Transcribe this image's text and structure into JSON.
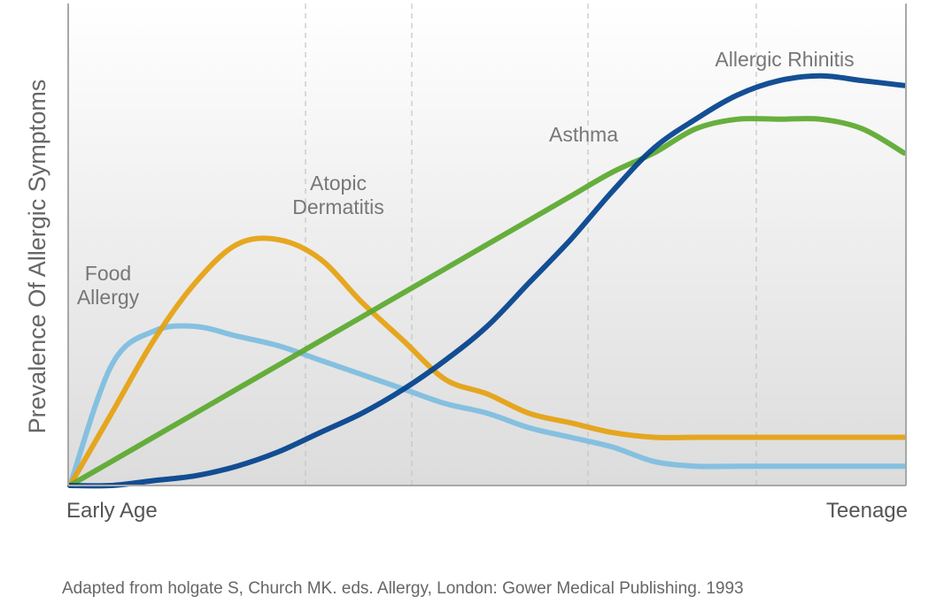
{
  "chart_data": {
    "type": "line",
    "title": "",
    "ylabel": "Prevalence Of Allergic Symptoms",
    "xlabel": "",
    "x_tick_labels": {
      "start": "Early Age",
      "end": "Teenage"
    },
    "x_range": [
      0,
      100
    ],
    "ylim": [
      0,
      100
    ],
    "grid": "dashed vertical lines",
    "x": [
      0,
      5,
      10,
      15,
      20,
      25,
      30,
      35,
      40,
      45,
      50,
      55,
      60,
      65,
      70,
      75,
      80,
      85,
      90,
      95,
      100
    ],
    "series": [
      {
        "name": "Food Allergy",
        "color": "#7dbde0",
        "values": [
          0,
          25,
          32,
          33,
          31,
          29,
          26,
          23,
          20,
          17,
          15,
          12,
          10,
          8,
          5,
          4,
          4,
          4,
          4,
          4,
          4
        ]
      },
      {
        "name": "Atopic Dermatitis",
        "color": "#e5a10e",
        "values": [
          0,
          15,
          30,
          42,
          50,
          51,
          47,
          38,
          30,
          22,
          19,
          15,
          13,
          11,
          10,
          10,
          10,
          10,
          10,
          10,
          10
        ]
      },
      {
        "name": "Asthma",
        "color": "#5aa82d",
        "values": [
          0,
          5,
          10,
          15,
          20,
          25,
          30,
          35,
          40,
          45,
          50,
          55,
          60,
          65,
          69,
          74,
          76,
          76,
          76,
          74,
          69
        ]
      },
      {
        "name": "Allergic Rhinitis",
        "color": "#00408c",
        "values": [
          0,
          0,
          1,
          2,
          4,
          7,
          11,
          15,
          20,
          26,
          33,
          42,
          51,
          61,
          70,
          76,
          81,
          84,
          85,
          84,
          83
        ]
      }
    ],
    "annotations": [
      {
        "series": "Food Allergy",
        "lines": [
          "Food",
          "Allergy"
        ]
      },
      {
        "series": "Atopic Dermatitis",
        "lines": [
          "Atopic",
          "Dermatitis"
        ]
      },
      {
        "series": "Asthma",
        "lines": [
          "Asthma"
        ]
      },
      {
        "series": "Allergic Rhinitis",
        "lines": [
          "Allergic Rhinitis"
        ]
      }
    ]
  },
  "caption": "Adapted from holgate S, Church MK. eds. Allergy, London: Gower Medical Publishing. 1993"
}
